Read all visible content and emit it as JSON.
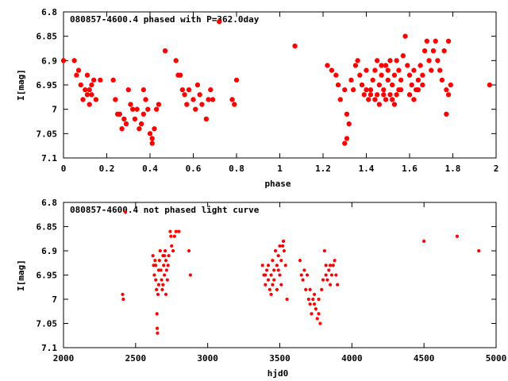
{
  "chart_data": [
    {
      "type": "scatter",
      "title": "080857-4600.4 phased with P=362.0day",
      "xlabel": "phase",
      "ylabel": "I[mag]",
      "xlim": [
        0,
        2
      ],
      "ylim": [
        6.8,
        7.1
      ],
      "y_inverted": true,
      "grid": false,
      "x_ticks": [
        "0",
        "0.2",
        "0.4",
        "0.6",
        "0.8",
        "1",
        "1.2",
        "1.4",
        "1.6",
        "1.8",
        "2"
      ],
      "x_tick_values": [
        0,
        0.2,
        0.4,
        0.6,
        0.8,
        1.0,
        1.2,
        1.4,
        1.6,
        1.8,
        2.0
      ],
      "y_ticks": [
        "6.8",
        "6.85",
        "6.9",
        "6.95",
        "7",
        "7.05",
        "7.1"
      ],
      "y_tick_values": [
        6.8,
        6.85,
        6.9,
        6.95,
        7.0,
        7.05,
        7.1
      ],
      "marker_color": "#ff0000",
      "points": [
        [
          0.0,
          6.9
        ],
        [
          0.05,
          6.9
        ],
        [
          0.07,
          6.92
        ],
        [
          0.06,
          6.93
        ],
        [
          0.08,
          6.95
        ],
        [
          0.1,
          6.96
        ],
        [
          0.09,
          6.98
        ],
        [
          0.11,
          6.97
        ],
        [
          0.12,
          6.99
        ],
        [
          0.13,
          6.95
        ],
        [
          0.14,
          6.94
        ],
        [
          0.12,
          6.96
        ],
        [
          0.15,
          6.98
        ],
        [
          0.17,
          6.94
        ],
        [
          0.11,
          6.93
        ],
        [
          0.13,
          6.97
        ],
        [
          0.23,
          6.94
        ],
        [
          0.24,
          6.98
        ],
        [
          0.25,
          7.01
        ],
        [
          0.26,
          7.01
        ],
        [
          0.27,
          7.04
        ],
        [
          0.28,
          7.02
        ],
        [
          0.29,
          7.03
        ],
        [
          0.3,
          6.96
        ],
        [
          0.31,
          6.99
        ],
        [
          0.32,
          7.0
        ],
        [
          0.33,
          7.02
        ],
        [
          0.34,
          7.0
        ],
        [
          0.35,
          7.04
        ],
        [
          0.36,
          7.03
        ],
        [
          0.37,
          7.01
        ],
        [
          0.37,
          6.96
        ],
        [
          0.38,
          6.98
        ],
        [
          0.39,
          7.0
        ],
        [
          0.4,
          7.05
        ],
        [
          0.41,
          7.06
        ],
        [
          0.42,
          7.04
        ],
        [
          0.43,
          7.0
        ],
        [
          0.44,
          6.99
        ],
        [
          0.41,
          7.07
        ],
        [
          0.47,
          6.88
        ],
        [
          0.52,
          6.9
        ],
        [
          0.53,
          6.93
        ],
        [
          0.54,
          6.93
        ],
        [
          0.55,
          6.96
        ],
        [
          0.56,
          6.97
        ],
        [
          0.57,
          6.99
        ],
        [
          0.58,
          6.96
        ],
        [
          0.6,
          6.98
        ],
        [
          0.61,
          7.0
        ],
        [
          0.62,
          6.95
        ],
        [
          0.63,
          6.97
        ],
        [
          0.64,
          6.99
        ],
        [
          0.66,
          7.02
        ],
        [
          0.67,
          6.98
        ],
        [
          0.68,
          6.96
        ],
        [
          0.69,
          6.98
        ],
        [
          0.72,
          6.82
        ],
        [
          0.78,
          6.98
        ],
        [
          0.79,
          6.99
        ],
        [
          0.8,
          6.94
        ],
        [
          1.07,
          6.87
        ],
        [
          1.22,
          6.91
        ],
        [
          1.24,
          6.92
        ],
        [
          1.26,
          6.93
        ],
        [
          1.27,
          6.95
        ],
        [
          1.28,
          6.98
        ],
        [
          1.3,
          6.96
        ],
        [
          1.31,
          7.01
        ],
        [
          1.32,
          7.03
        ],
        [
          1.31,
          7.06
        ],
        [
          1.3,
          7.07
        ],
        [
          1.33,
          6.94
        ],
        [
          1.34,
          6.96
        ],
        [
          1.35,
          6.91
        ],
        [
          1.36,
          6.9
        ],
        [
          1.37,
          6.93
        ],
        [
          1.38,
          6.95
        ],
        [
          1.39,
          6.97
        ],
        [
          1.4,
          6.96
        ],
        [
          1.41,
          6.98
        ],
        [
          1.42,
          6.97
        ],
        [
          1.43,
          6.94
        ],
        [
          1.44,
          6.92
        ],
        [
          1.45,
          6.97
        ],
        [
          1.46,
          6.95
        ],
        [
          1.47,
          6.93
        ],
        [
          1.48,
          6.96
        ],
        [
          1.49,
          6.91
        ],
        [
          1.5,
          6.94
        ],
        [
          1.51,
          6.97
        ],
        [
          1.52,
          6.95
        ],
        [
          1.53,
          6.93
        ],
        [
          1.54,
          6.97
        ],
        [
          1.55,
          6.92
        ],
        [
          1.56,
          6.94
        ],
        [
          1.57,
          6.89
        ],
        [
          1.58,
          6.85
        ],
        [
          1.59,
          6.91
        ],
        [
          1.6,
          6.93
        ],
        [
          1.61,
          6.95
        ],
        [
          1.62,
          6.92
        ],
        [
          1.63,
          6.96
        ],
        [
          1.64,
          6.94
        ],
        [
          1.65,
          6.91
        ],
        [
          1.66,
          6.93
        ],
        [
          1.67,
          6.88
        ],
        [
          1.68,
          6.86
        ],
        [
          1.69,
          6.9
        ],
        [
          1.7,
          6.92
        ],
        [
          1.71,
          6.88
        ],
        [
          1.72,
          6.86
        ],
        [
          1.73,
          6.9
        ],
        [
          1.74,
          6.92
        ],
        [
          1.75,
          6.94
        ],
        [
          1.77,
          6.96
        ],
        [
          1.78,
          6.97
        ],
        [
          1.78,
          6.86
        ],
        [
          1.79,
          6.95
        ],
        [
          1.77,
          7.01
        ],
        [
          1.76,
          6.88
        ],
        [
          1.4,
          6.92
        ],
        [
          1.42,
          6.96
        ],
        [
          1.44,
          6.98
        ],
        [
          1.46,
          6.99
        ],
        [
          1.48,
          6.97
        ],
        [
          1.5,
          6.92
        ],
        [
          1.52,
          6.98
        ],
        [
          1.54,
          6.9
        ],
        [
          1.56,
          6.96
        ],
        [
          1.6,
          6.97
        ],
        [
          1.62,
          6.98
        ],
        [
          1.64,
          6.96
        ],
        [
          1.66,
          6.95
        ],
        [
          1.45,
          6.9
        ],
        [
          1.47,
          6.91
        ],
        [
          1.49,
          6.98
        ],
        [
          1.51,
          6.9
        ],
        [
          1.53,
          6.99
        ],
        [
          1.55,
          6.96
        ],
        [
          1.97,
          6.95
        ]
      ]
    },
    {
      "type": "scatter",
      "title": "080857-4600.4 not phased light curve",
      "xlabel": "hjd0",
      "ylabel": "I[mag]",
      "xlim": [
        2000,
        5000
      ],
      "ylim": [
        6.8,
        7.1
      ],
      "y_inverted": true,
      "grid": false,
      "x_ticks": [
        "2000",
        "2500",
        "3000",
        "3500",
        "4000",
        "4500",
        "5000"
      ],
      "x_tick_values": [
        2000,
        2500,
        3000,
        3500,
        4000,
        4500,
        5000
      ],
      "y_ticks": [
        "6.8",
        "6.85",
        "6.9",
        "6.95",
        "7",
        "7.05",
        "7.1"
      ],
      "y_tick_values": [
        6.8,
        6.85,
        6.9,
        6.95,
        7.0,
        7.05,
        7.1
      ],
      "marker_color": "#ff0000",
      "points": [
        [
          2410,
          6.99
        ],
        [
          2415,
          7.0
        ],
        [
          2430,
          6.82
        ],
        [
          2620,
          6.91
        ],
        [
          2625,
          6.93
        ],
        [
          2630,
          6.95
        ],
        [
          2635,
          6.92
        ],
        [
          2640,
          6.96
        ],
        [
          2645,
          6.98
        ],
        [
          2648,
          7.03
        ],
        [
          2650,
          7.06
        ],
        [
          2652,
          7.07
        ],
        [
          2655,
          6.99
        ],
        [
          2660,
          6.97
        ],
        [
          2665,
          6.92
        ],
        [
          2670,
          6.9
        ],
        [
          2675,
          6.94
        ],
        [
          2680,
          6.96
        ],
        [
          2685,
          6.98
        ],
        [
          2690,
          6.91
        ],
        [
          2695,
          6.93
        ],
        [
          2700,
          6.95
        ],
        [
          2705,
          6.9
        ],
        [
          2710,
          6.92
        ],
        [
          2715,
          6.94
        ],
        [
          2720,
          6.96
        ],
        [
          2725,
          6.93
        ],
        [
          2730,
          6.91
        ],
        [
          2740,
          6.86
        ],
        [
          2745,
          6.87
        ],
        [
          2750,
          6.89
        ],
        [
          2760,
          6.9
        ],
        [
          2770,
          6.87
        ],
        [
          2780,
          6.86
        ],
        [
          2800,
          6.86
        ],
        [
          2870,
          6.9
        ],
        [
          2880,
          6.95
        ],
        [
          2660,
          6.94
        ],
        [
          2690,
          6.97
        ],
        [
          2710,
          6.99
        ],
        [
          2640,
          6.93
        ],
        [
          2700,
          6.91
        ],
        [
          3380,
          6.93
        ],
        [
          3390,
          6.95
        ],
        [
          3400,
          6.97
        ],
        [
          3410,
          6.94
        ],
        [
          3420,
          6.96
        ],
        [
          3430,
          6.98
        ],
        [
          3440,
          6.99
        ],
        [
          3450,
          6.92
        ],
        [
          3460,
          6.94
        ],
        [
          3470,
          6.9
        ],
        [
          3480,
          6.93
        ],
        [
          3490,
          6.91
        ],
        [
          3500,
          6.89
        ],
        [
          3510,
          6.92
        ],
        [
          3520,
          6.89
        ],
        [
          3525,
          6.88
        ],
        [
          3530,
          6.9
        ],
        [
          3540,
          6.93
        ],
        [
          3550,
          7.0
        ],
        [
          3420,
          6.93
        ],
        [
          3440,
          6.95
        ],
        [
          3460,
          6.96
        ],
        [
          3480,
          6.98
        ],
        [
          3500,
          6.95
        ],
        [
          3510,
          6.97
        ],
        [
          3400,
          6.95
        ],
        [
          3450,
          6.97
        ],
        [
          3490,
          6.94
        ],
        [
          3640,
          6.92
        ],
        [
          3650,
          6.95
        ],
        [
          3660,
          6.96
        ],
        [
          3670,
          6.94
        ],
        [
          3680,
          6.98
        ],
        [
          3690,
          6.95
        ],
        [
          3700,
          7.0
        ],
        [
          3710,
          7.01
        ],
        [
          3720,
          7.03
        ],
        [
          3730,
          7.0
        ],
        [
          3740,
          6.99
        ],
        [
          3750,
          7.02
        ],
        [
          3760,
          7.04
        ],
        [
          3770,
          7.03
        ],
        [
          3780,
          7.05
        ],
        [
          3790,
          6.98
        ],
        [
          3800,
          6.96
        ],
        [
          3810,
          6.9
        ],
        [
          3820,
          6.93
        ],
        [
          3830,
          6.96
        ],
        [
          3840,
          6.94
        ],
        [
          3850,
          6.97
        ],
        [
          3860,
          6.95
        ],
        [
          3870,
          6.93
        ],
        [
          3880,
          6.92
        ],
        [
          3890,
          6.95
        ],
        [
          3900,
          6.97
        ],
        [
          3710,
          6.98
        ],
        [
          3740,
          7.01
        ],
        [
          3770,
          7.0
        ],
        [
          3820,
          6.95
        ],
        [
          3850,
          6.93
        ],
        [
          4500,
          6.88
        ],
        [
          4730,
          6.87
        ],
        [
          4880,
          6.9
        ]
      ]
    }
  ]
}
